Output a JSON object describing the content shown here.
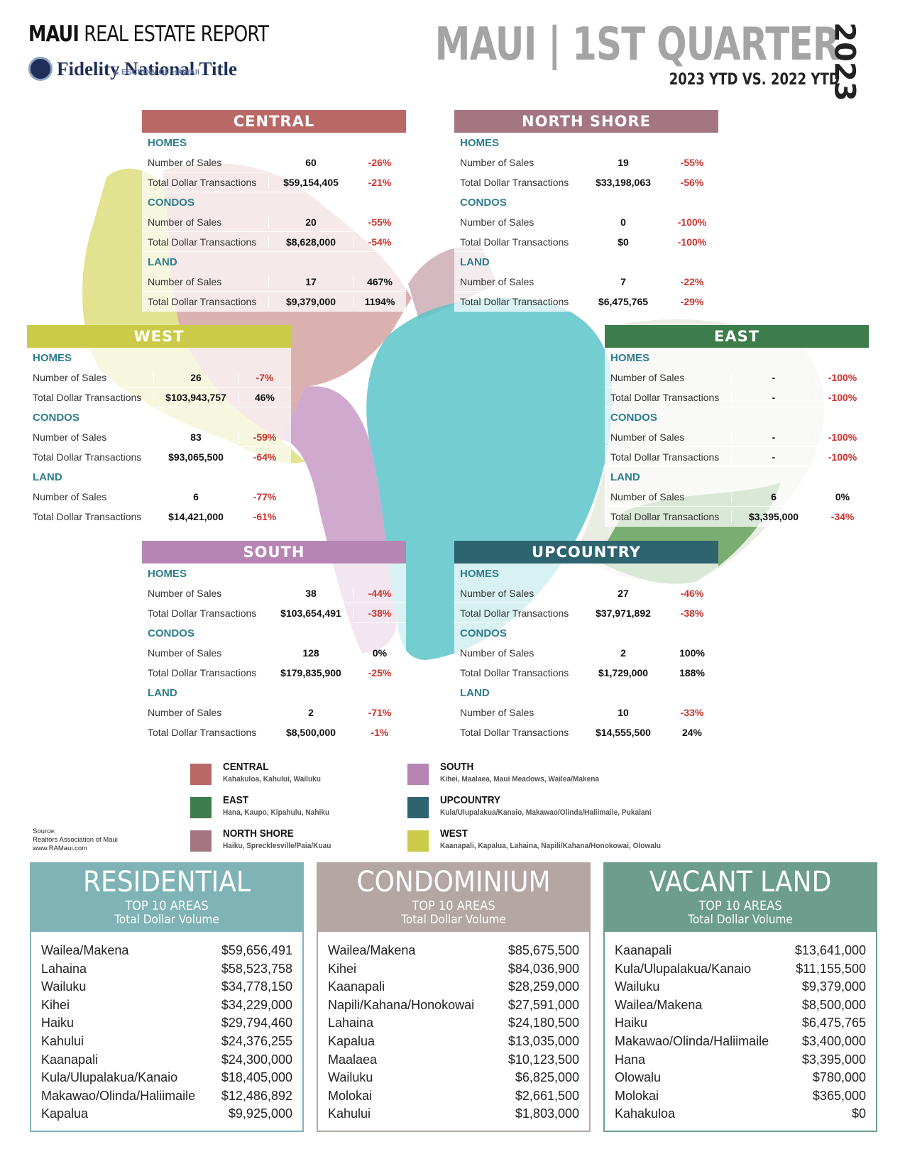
{
  "header": {
    "report_title_bold": "MAUI",
    "report_title_rest": "REAL ESTATE REPORT",
    "company": "Fidelity National Title",
    "company_sub": "& ESCROW OF HAWAII",
    "main_title": "MAUI | 1ST QUARTER",
    "year": "2023",
    "comparison": "2023 YTD VS. 2022 YTD"
  },
  "colors": {
    "central": "#b96866",
    "north_shore": "#a47682",
    "west": "#cbcb49",
    "east": "#3d7d4c",
    "south": "#b685b4",
    "upcountry": "#2e6470",
    "teal_text": "#2f7d8c",
    "residential": "#7fb3b6",
    "condominium": "#b4a6a3",
    "vacant_land": "#6c9d8d"
  },
  "regions": {
    "central": {
      "title": "CENTRAL",
      "homes": {
        "label": "HOMES",
        "sales_label": "Number of Sales",
        "sales": "60",
        "sales_pct": "-26%",
        "dollar_label": "Total Dollar Transactions",
        "dollar": "$59,154,405",
        "dollar_pct": "-21%"
      },
      "condos": {
        "label": "CONDOS",
        "sales_label": "Number of Sales",
        "sales": "20",
        "sales_pct": "-55%",
        "dollar_label": "Total Dollar Transactions",
        "dollar": "$8,628,000",
        "dollar_pct": "-54%"
      },
      "land": {
        "label": "LAND",
        "sales_label": "Number of Sales",
        "sales": "17",
        "sales_pct": "467%",
        "dollar_label": "Total Dollar Transactions",
        "dollar": "$9,379,000",
        "dollar_pct": "1194%"
      }
    },
    "north_shore": {
      "title": "NORTH SHORE",
      "homes": {
        "label": "HOMES",
        "sales_label": "Number of Sales",
        "sales": "19",
        "sales_pct": "-55%",
        "dollar_label": "Total Dollar Transactions",
        "dollar": "$33,198,063",
        "dollar_pct": "-56%"
      },
      "condos": {
        "label": "CONDOS",
        "sales_label": "Number of Sales",
        "sales": "0",
        "sales_pct": "-100%",
        "dollar_label": "Total Dollar Transactions",
        "dollar": "$0",
        "dollar_pct": "-100%"
      },
      "land": {
        "label": "LAND",
        "sales_label": "Number of Sales",
        "sales": "7",
        "sales_pct": "-22%",
        "dollar_label": "Total Dollar Transactions",
        "dollar": "$6,475,765",
        "dollar_pct": "-29%"
      }
    },
    "west": {
      "title": "WEST",
      "homes": {
        "label": "HOMES",
        "sales_label": "Number of Sales",
        "sales": "26",
        "sales_pct": "-7%",
        "dollar_label": "Total Dollar Transactions",
        "dollar": "$103,943,757",
        "dollar_pct": "46%"
      },
      "condos": {
        "label": "CONDOS",
        "sales_label": "Number of Sales",
        "sales": "83",
        "sales_pct": "-59%",
        "dollar_label": "Total Dollar Transactions",
        "dollar": "$93,065,500",
        "dollar_pct": "-64%"
      },
      "land": {
        "label": "LAND",
        "sales_label": "Number of Sales",
        "sales": "6",
        "sales_pct": "-77%",
        "dollar_label": "Total Dollar Transactions",
        "dollar": "$14,421,000",
        "dollar_pct": "-61%"
      }
    },
    "east": {
      "title": "EAST",
      "homes": {
        "label": "HOMES",
        "sales_label": "Number of Sales",
        "sales": "-",
        "sales_pct": "-100%",
        "dollar_label": "Total Dollar Transactions",
        "dollar": "-",
        "dollar_pct": "-100%"
      },
      "condos": {
        "label": "CONDOS",
        "sales_label": "Number of Sales",
        "sales": "-",
        "sales_pct": "-100%",
        "dollar_label": "Total Dollar Transactions",
        "dollar": "-",
        "dollar_pct": "-100%"
      },
      "land": {
        "label": "LAND",
        "sales_label": "Number of Sales",
        "sales": "6",
        "sales_pct": "0%",
        "dollar_label": "Total Dollar Transactions",
        "dollar": "$3,395,000",
        "dollar_pct": "-34%"
      }
    },
    "south": {
      "title": "SOUTH",
      "homes": {
        "label": "HOMES",
        "sales_label": "Number of Sales",
        "sales": "38",
        "sales_pct": "-44%",
        "dollar_label": "Total Dollar Transactions",
        "dollar": "$103,654,491",
        "dollar_pct": "-38%"
      },
      "condos": {
        "label": "CONDOS",
        "sales_label": "Number of Sales",
        "sales": "128",
        "sales_pct": "0%",
        "dollar_label": "Total Dollar Transactions",
        "dollar": "$179,835,900",
        "dollar_pct": "-25%"
      },
      "land": {
        "label": "LAND",
        "sales_label": "Number of Sales",
        "sales": "2",
        "sales_pct": "-71%",
        "dollar_label": "Total Dollar Transactions",
        "dollar": "$8,500,000",
        "dollar_pct": "-1%"
      }
    },
    "upcountry": {
      "title": "UPCOUNTRY",
      "homes": {
        "label": "HOMES",
        "sales_label": "Number of Sales",
        "sales": "27",
        "sales_pct": "-46%",
        "dollar_label": "Total Dollar Transactions",
        "dollar": "$37,971,892",
        "dollar_pct": "-38%"
      },
      "condos": {
        "label": "CONDOS",
        "sales_label": "Number of Sales",
        "sales": "2",
        "sales_pct": "100%",
        "dollar_label": "Total Dollar Transactions",
        "dollar": "$1,729,000",
        "dollar_pct": "188%"
      },
      "land": {
        "label": "LAND",
        "sales_label": "Number of Sales",
        "sales": "10",
        "sales_pct": "-33%",
        "dollar_label": "Total Dollar Transactions",
        "dollar": "$14,555,500",
        "dollar_pct": "24%"
      }
    }
  },
  "legend": {
    "central": {
      "name": "CENTRAL",
      "areas": "Kahakuloa, Kahului, Wailuku"
    },
    "east": {
      "name": "EAST",
      "areas": "Hana, Kaupo, Kipahulu, Nahiku"
    },
    "north_shore": {
      "name": "NORTH SHORE",
      "areas": "Haiku, Sprecklesville/Paia/Kuau"
    },
    "south": {
      "name": "SOUTH",
      "areas": "Kihei, Maalaea, Maui Meadows, Wailea/Makena"
    },
    "upcountry": {
      "name": "UPCOUNTRY",
      "areas": "Kula/Ulupalakua/Kanaio, Makawao/Olinda/Haliimaile, Pukalani"
    },
    "west": {
      "name": "WEST",
      "areas": "Kaanapali, Kapalua, Lahaina, Napili/Kahana/Honokowai, Olowalu"
    }
  },
  "source": {
    "line1": "Source:",
    "line2": "Realtors Association of Maui",
    "line3": "www.RAMaui.com"
  },
  "top10": {
    "residential": {
      "title": "RESIDENTIAL",
      "subtitle": "TOP 10 AREAS",
      "subtitle2": "Total Dollar Volume",
      "items": [
        {
          "area": "Wailea/Makena",
          "value": "$59,656,491"
        },
        {
          "area": "Lahaina",
          "value": "$58,523,758"
        },
        {
          "area": "Wailuku",
          "value": "$34,778,150"
        },
        {
          "area": "Kihei",
          "value": "$34,229,000"
        },
        {
          "area": "Haiku",
          "value": "$29,794,460"
        },
        {
          "area": "Kahului",
          "value": "$24,376,255"
        },
        {
          "area": "Kaanapali",
          "value": "$24,300,000"
        },
        {
          "area": "Kula/Ulupalakua/Kanaio",
          "value": "$18,405,000"
        },
        {
          "area": "Makawao/Olinda/Haliimaile",
          "value": "$12,486,892"
        },
        {
          "area": "Kapalua",
          "value": "$9,925,000"
        }
      ]
    },
    "condominium": {
      "title": "CONDOMINIUM",
      "subtitle": "TOP 10 AREAS",
      "subtitle2": "Total Dollar Volume",
      "items": [
        {
          "area": "Wailea/Makena",
          "value": "$85,675,500"
        },
        {
          "area": "Kihei",
          "value": "$84,036,900"
        },
        {
          "area": "Kaanapali",
          "value": "$28,259,000"
        },
        {
          "area": "Napili/Kahana/Honokowai",
          "value": "$27,591,000"
        },
        {
          "area": "Lahaina",
          "value": "$24,180,500"
        },
        {
          "area": "Kapalua",
          "value": "$13,035,000"
        },
        {
          "area": "Maalaea",
          "value": "$10,123,500"
        },
        {
          "area": "Wailuku",
          "value": "$6,825,000"
        },
        {
          "area": "Molokai",
          "value": "$2,661,500"
        },
        {
          "area": "Kahului",
          "value": "$1,803,000"
        }
      ]
    },
    "vacant_land": {
      "title": "VACANT LAND",
      "subtitle": "TOP 10 AREAS",
      "subtitle2": "Total Dollar Volume",
      "items": [
        {
          "area": "Kaanapali",
          "value": "$13,641,000"
        },
        {
          "area": "Kula/Ulupalakua/Kanaio",
          "value": "$11,155,500"
        },
        {
          "area": "Wailuku",
          "value": "$9,379,000"
        },
        {
          "area": "Wailea/Makena",
          "value": "$8,500,000"
        },
        {
          "area": "Haiku",
          "value": "$6,475,765"
        },
        {
          "area": "Makawao/Olinda/Haliimaile",
          "value": "$3,400,000"
        },
        {
          "area": "Hana",
          "value": "$3,395,000"
        },
        {
          "area": "Olowalu",
          "value": "$780,000"
        },
        {
          "area": "Molokai",
          "value": "$365,000"
        },
        {
          "area": "Kahakuloa",
          "value": "$0"
        }
      ]
    }
  }
}
